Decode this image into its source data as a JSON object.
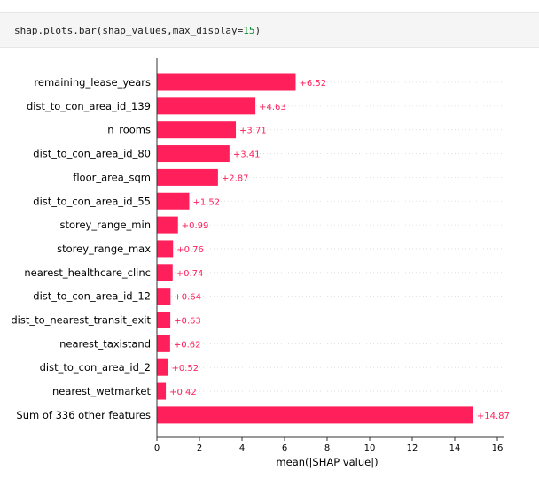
{
  "code": {
    "prefix": "shap.plots.bar(shap_values,max_display=",
    "arg": "15",
    "suffix": ")"
  },
  "colors": {
    "bar": "#ff1f5b",
    "value_text": "#ff1f5b",
    "gridline": "#d9d9d9",
    "axis": "#333333"
  },
  "chart_data": {
    "type": "bar",
    "orientation": "horizontal",
    "categories": [
      "remaining_lease_years",
      "dist_to_con_area_id_139",
      "n_rooms",
      "dist_to_con_area_id_80",
      "floor_area_sqm",
      "dist_to_con_area_id_55",
      "storey_range_min",
      "storey_range_max",
      "nearest_healthcare_clinc",
      "dist_to_con_area_id_12",
      "dist_to_nearest_transit_exit",
      "nearest_taxistand",
      "dist_to_con_area_id_2",
      "nearest_wetmarket",
      "Sum of 336 other features"
    ],
    "values": [
      6.52,
      4.63,
      3.71,
      3.41,
      2.87,
      1.52,
      0.99,
      0.76,
      0.74,
      0.64,
      0.63,
      0.62,
      0.52,
      0.42,
      14.87
    ],
    "value_labels": [
      "+6.52",
      "+4.63",
      "+3.71",
      "+3.41",
      "+2.87",
      "+1.52",
      "+0.99",
      "+0.76",
      "+0.74",
      "+0.64",
      "+0.63",
      "+0.62",
      "+0.52",
      "+0.42",
      "+14.87"
    ],
    "xticks": [
      0,
      2,
      4,
      6,
      8,
      10,
      12,
      14,
      16
    ],
    "xlim": [
      0,
      16.3
    ],
    "xlabel": "mean(|SHAP value|)",
    "grid": "horizontal dotted per category"
  }
}
